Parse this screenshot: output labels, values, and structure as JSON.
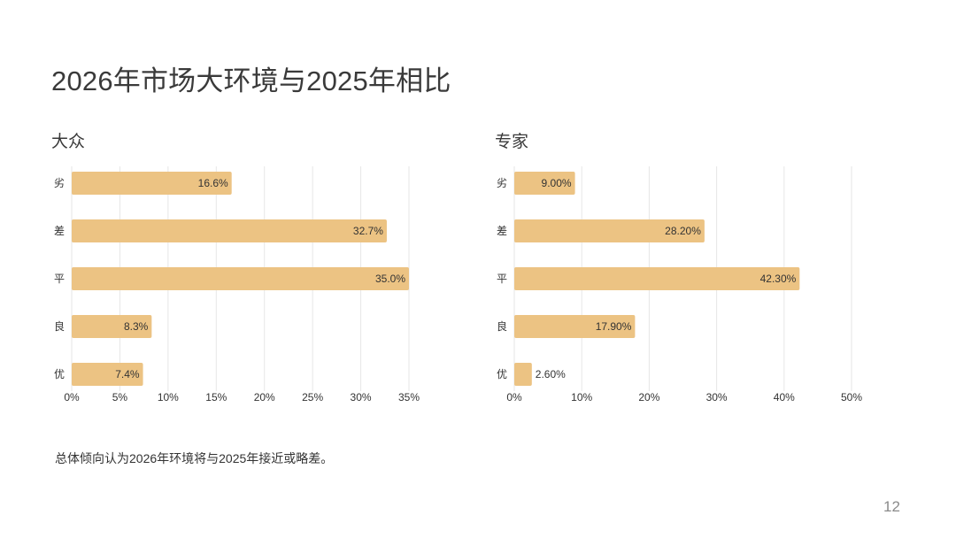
{
  "page": {
    "title": "2026年市场大环境与2025年相比",
    "summary": "总体倾向认为2026年环境将与2025年接近或略差。",
    "page_number": "12"
  },
  "colors": {
    "bar": "#ecc383",
    "grid": "#e6e6e6",
    "text": "#333333"
  },
  "chart_data": [
    {
      "type": "bar",
      "orientation": "horizontal",
      "title": "大众",
      "categories": [
        "劣",
        "差",
        "平",
        "良",
        "优"
      ],
      "values": [
        16.6,
        32.7,
        35.0,
        8.3,
        7.4
      ],
      "value_labels": [
        "16.6%",
        "32.7%",
        "35.0%",
        "8.3%",
        "7.4%"
      ],
      "xlim": [
        0,
        35
      ],
      "xticks": [
        "0%",
        "5%",
        "10%",
        "15%",
        "20%",
        "25%",
        "30%",
        "35%"
      ],
      "grid": true,
      "legend": "none"
    },
    {
      "type": "bar",
      "orientation": "horizontal",
      "title": "专家",
      "categories": [
        "劣",
        "差",
        "平",
        "良",
        "优"
      ],
      "values": [
        9.0,
        28.2,
        42.3,
        17.9,
        2.6
      ],
      "value_labels": [
        "9.00%",
        "28.20%",
        "42.30%",
        "17.90%",
        "2.60%"
      ],
      "xlim": [
        0,
        50
      ],
      "xticks": [
        "0%",
        "10%",
        "20%",
        "30%",
        "40%",
        "50%"
      ],
      "grid": true,
      "legend": "none"
    }
  ]
}
